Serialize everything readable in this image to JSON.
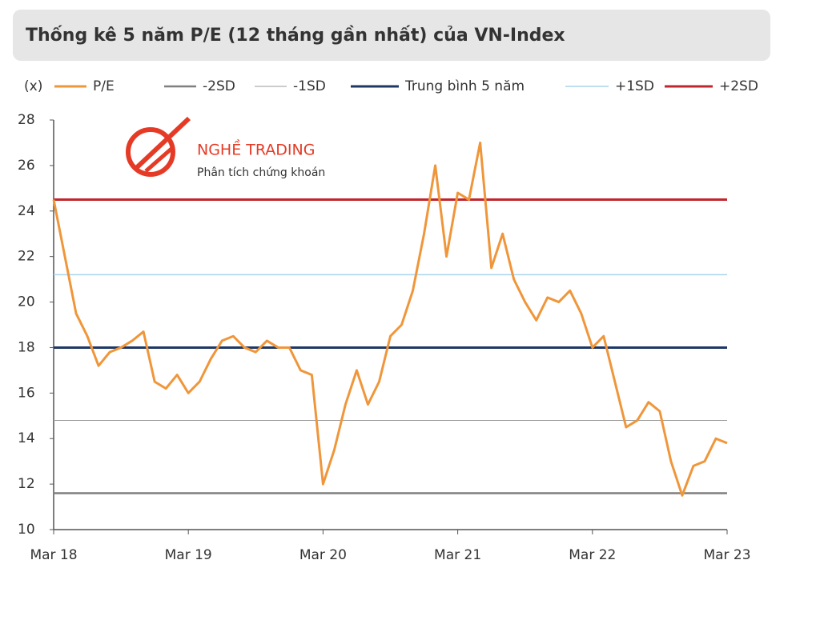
{
  "chart_data": {
    "type": "line",
    "title": "Thống kê 5 năm P/E (12 tháng gần nhất) của VN-Index",
    "y_unit": "(x)",
    "watermark": {
      "title": "NGHỀ TRADING",
      "subtitle": "Phân tích chứng khoán"
    },
    "x": [
      "2018-03",
      "2018-04",
      "2018-05",
      "2018-06",
      "2018-07",
      "2018-08",
      "2018-09",
      "2018-10",
      "2018-11",
      "2018-12",
      "2019-01",
      "2019-02",
      "2019-03",
      "2019-04",
      "2019-05",
      "2019-06",
      "2019-07",
      "2019-08",
      "2019-09",
      "2019-10",
      "2019-11",
      "2019-12",
      "2020-01",
      "2020-02",
      "2020-03",
      "2020-04",
      "2020-05",
      "2020-06",
      "2020-07",
      "2020-08",
      "2020-09",
      "2020-10",
      "2020-11",
      "2020-12",
      "2021-01",
      "2021-02",
      "2021-03",
      "2021-04",
      "2021-05",
      "2021-06",
      "2021-07",
      "2021-08",
      "2021-09",
      "2021-10",
      "2021-11",
      "2021-12",
      "2022-01",
      "2022-02",
      "2022-03",
      "2022-04",
      "2022-05",
      "2022-06",
      "2022-07",
      "2022-08",
      "2022-09",
      "2022-10",
      "2022-11",
      "2022-12",
      "2023-01",
      "2023-02",
      "2023-03"
    ],
    "series": [
      {
        "name": "P/E",
        "color": "#f0963a",
        "values": [
          24.5,
          22,
          19.5,
          18.5,
          17.2,
          17.8,
          18.0,
          18.3,
          18.7,
          16.5,
          16.2,
          16.8,
          16.0,
          16.5,
          17.5,
          18.3,
          18.5,
          18.0,
          17.8,
          18.3,
          18.0,
          18.0,
          17.0,
          16.8,
          12.0,
          13.5,
          15.5,
          17.0,
          15.5,
          16.5,
          18.5,
          19.0,
          20.5,
          23.0,
          26.0,
          22.0,
          24.8,
          24.5,
          27.0,
          21.5,
          23.0,
          21.0,
          20.0,
          19.2,
          20.2,
          20.0,
          20.5,
          19.5,
          18.0,
          18.5,
          16.5,
          14.5,
          14.8,
          15.6,
          15.2,
          13.0,
          11.5,
          12.8,
          13.0,
          14.0,
          13.8
        ]
      }
    ],
    "reference_lines": [
      {
        "name": "-2SD",
        "value": 11.6,
        "color": "#7f7f7f"
      },
      {
        "name": "-1SD",
        "value": 14.8,
        "color": "#9a9a9a"
      },
      {
        "name": "Trung bình 5 năm",
        "value": 18.0,
        "color": "#1f3763"
      },
      {
        "name": "+1SD",
        "value": 21.2,
        "color": "#a9d3ec"
      },
      {
        "name": "+2SD",
        "value": 24.5,
        "color": "#c0272d"
      }
    ],
    "xlim": [
      "2018-03",
      "2023-03"
    ],
    "xticks": [
      {
        "value": "2018-03",
        "label": "Mar 18"
      },
      {
        "value": "2019-03",
        "label": "Mar 19"
      },
      {
        "value": "2020-03",
        "label": "Mar 20"
      },
      {
        "value": "2021-03",
        "label": "Mar 21"
      },
      {
        "value": "2022-03",
        "label": "Mar 22"
      },
      {
        "value": "2023-03",
        "label": "Mar 23"
      }
    ],
    "ylim": [
      10,
      28
    ],
    "yticks": [
      10,
      12,
      14,
      16,
      18,
      20,
      22,
      24,
      26,
      28
    ],
    "legend": "top"
  }
}
